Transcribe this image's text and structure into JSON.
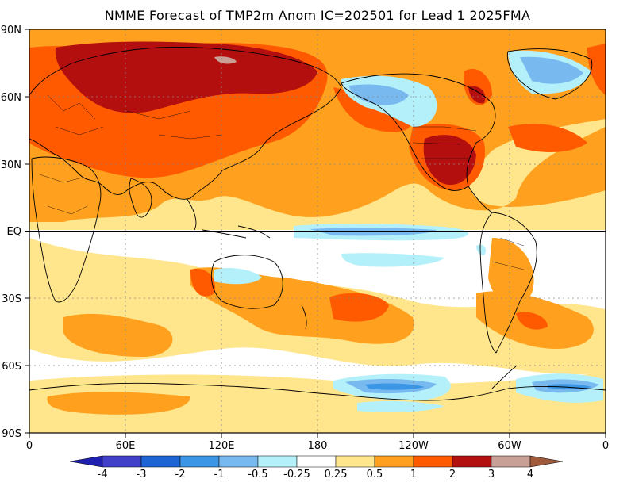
{
  "title": "NMME Forecast of TMP2m Anom IC=202501 for Lead 1 2025FMA",
  "map": {
    "lat_labels": [
      "90N",
      "60N",
      "30N",
      "EQ",
      "30S",
      "60S",
      "90S"
    ],
    "lon_labels": [
      "0",
      "60E",
      "120E",
      "180",
      "120W",
      "60W",
      "0"
    ]
  },
  "colorbar": {
    "labels": [
      "-4",
      "-3",
      "-2",
      "-1",
      "-0.5",
      "-0.25",
      "0.25",
      "0.5",
      "1",
      "2",
      "3",
      "4"
    ],
    "colors": [
      "#2020b0",
      "#4040c8",
      "#1e64d2",
      "#3c96e6",
      "#78b9f0",
      "#b4f0fa",
      "#ffffff",
      "#ffe68c",
      "#ffa01e",
      "#ff5a00",
      "#b40f0f",
      "#c8a096",
      "#a05a3c"
    ]
  },
  "palette": {
    "warm1": "#ffe68c",
    "warm2": "#ffa01e",
    "warm3": "#ff5a00",
    "warm4": "#b40f0f",
    "warm5": "#c8a096",
    "cool1": "#b4f0fa",
    "cool2": "#78b9f0",
    "cool3": "#3c96e6"
  }
}
